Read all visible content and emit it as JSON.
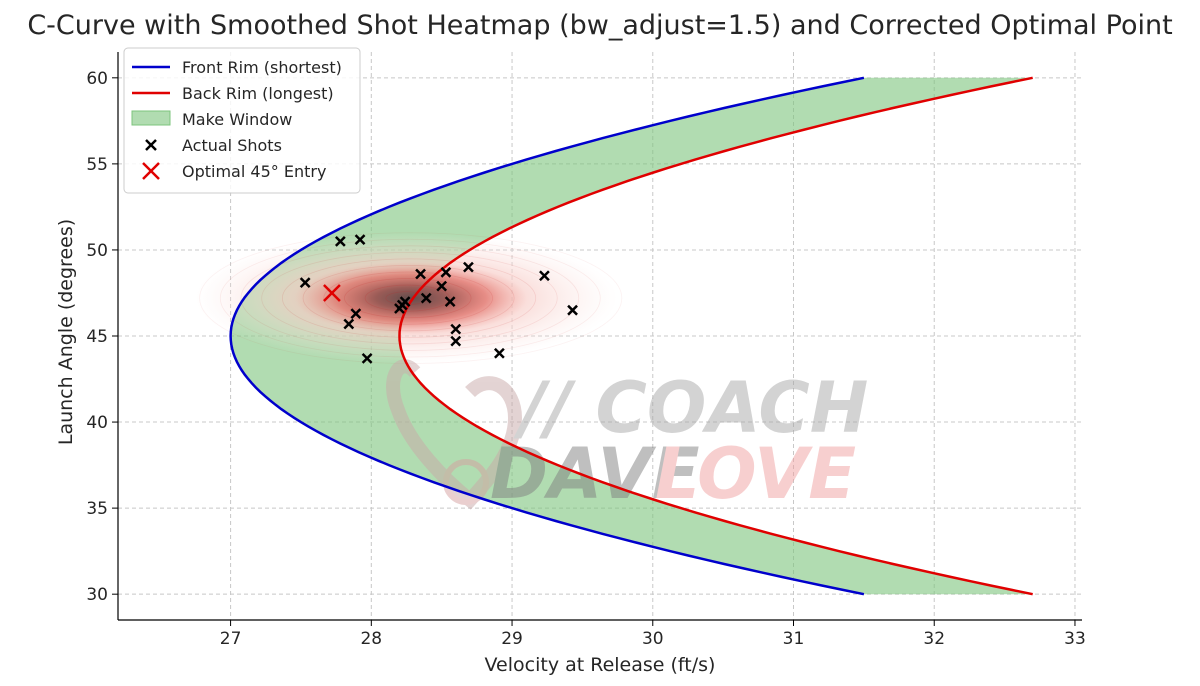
{
  "chart_data": {
    "type": "line",
    "title": "C-Curve with Smoothed Shot Heatmap (bw_adjust=1.5) and Corrected Optimal Point",
    "xlabel": "Velocity at Release (ft/s)",
    "ylabel": "Launch Angle (degrees)",
    "xlim": [
      26.2,
      33.05
    ],
    "ylim": [
      28.5,
      61.5
    ],
    "xticks": [
      27,
      28,
      29,
      30,
      31,
      32,
      33
    ],
    "yticks": [
      30,
      35,
      40,
      45,
      50,
      55,
      60
    ],
    "grid": true,
    "legend_position": "top-left",
    "series": [
      {
        "name": "Front Rim (shortest)",
        "color": "#0000cc",
        "vertex_velocity": 27.0,
        "vertex_angle": 45,
        "endpoints": [
          {
            "angle": 60,
            "velocity": 31.5
          },
          {
            "angle": 30,
            "velocity": 31.5
          }
        ]
      },
      {
        "name": "Back Rim (longest)",
        "color": "#e00000",
        "vertex_velocity": 28.2,
        "vertex_angle": 45,
        "endpoints": [
          {
            "angle": 60,
            "velocity": 32.7
          },
          {
            "angle": 30,
            "velocity": 32.7
          }
        ]
      }
    ],
    "fill_between": {
      "name": "Make Window",
      "color": "#7dc47d"
    },
    "heatmap": {
      "label": "Smoothed Shot Heatmap",
      "bw_adjust": 1.5,
      "center": {
        "x": 28.25,
        "y": 47.2
      },
      "spread": {
        "x": 1.5,
        "y": 3.8
      },
      "color": "#c81e1e"
    },
    "scatter": {
      "name": "Actual Shots",
      "marker": "x",
      "color": "#000000",
      "points": [
        [
          27.53,
          48.1
        ],
        [
          27.78,
          50.5
        ],
        [
          27.92,
          50.6
        ],
        [
          27.84,
          45.7
        ],
        [
          27.89,
          46.3
        ],
        [
          27.97,
          43.7
        ],
        [
          28.2,
          46.6
        ],
        [
          28.22,
          46.8
        ],
        [
          28.24,
          47.0
        ],
        [
          28.35,
          48.6
        ],
        [
          28.39,
          47.2
        ],
        [
          28.5,
          47.9
        ],
        [
          28.53,
          48.7
        ],
        [
          28.56,
          47.0
        ],
        [
          28.6,
          45.4
        ],
        [
          28.6,
          44.7
        ],
        [
          28.69,
          49.0
        ],
        [
          28.91,
          44.0
        ],
        [
          29.23,
          48.5
        ],
        [
          29.43,
          46.5
        ]
      ]
    },
    "optimal_point": {
      "name": "Optimal 45° Entry",
      "x": 27.72,
      "y": 47.5,
      "color": "#e00000"
    }
  },
  "watermark": {
    "line1": "// COACH",
    "line2_a": "DAVE",
    "line2_b": "LOVE"
  }
}
